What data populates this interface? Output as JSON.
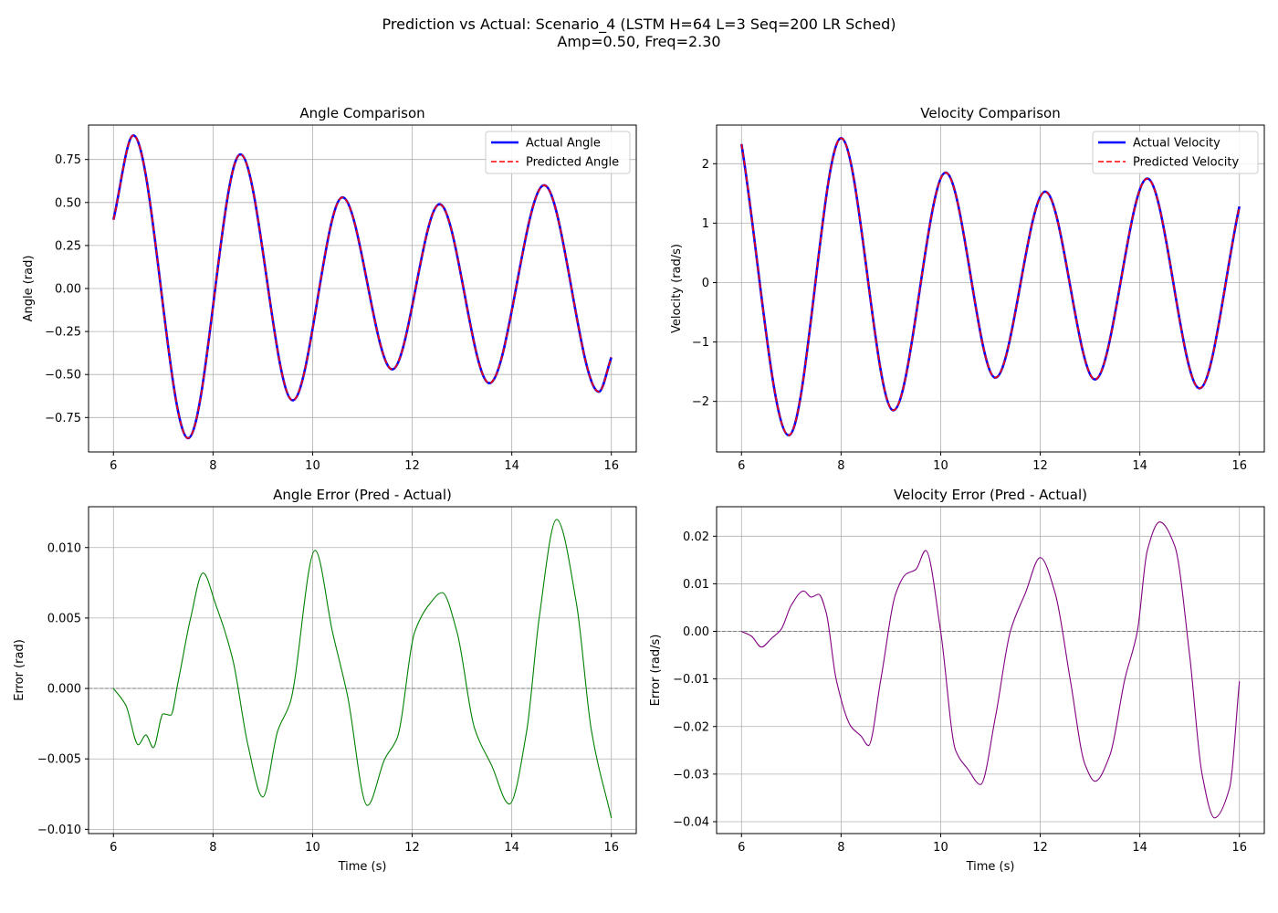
{
  "figure": {
    "title_line1": "Prediction vs Actual: Scenario_4 (LSTM H=64 L=3 Seq=200 LR Sched)",
    "title_line2": "Amp=0.50, Freq=2.30"
  },
  "colors": {
    "actual": "#0000ff",
    "predicted": "#ff0000",
    "angle_error": "#008000",
    "velocity_error": "#800080",
    "zero_line": "#808080",
    "grid": "#b0b0b0"
  },
  "chart_data": [
    {
      "id": "angle",
      "type": "line",
      "title": "Angle Comparison",
      "xlabel": "",
      "ylabel": "Angle (rad)",
      "xlim": [
        5.5,
        16.5
      ],
      "ylim": [
        -0.95,
        0.95
      ],
      "xticks": [
        6,
        8,
        10,
        12,
        14,
        16
      ],
      "yticks": [
        -0.75,
        -0.5,
        -0.25,
        0.0,
        0.25,
        0.5,
        0.75
      ],
      "ytick_labels": [
        "−0.75",
        "−0.50",
        "−0.25",
        "0.00",
        "0.25",
        "0.50",
        "0.75"
      ],
      "grid": true,
      "legend": "top-right",
      "x": [
        6.0,
        6.4,
        7.5,
        8.55,
        9.6,
        10.6,
        11.6,
        12.55,
        13.55,
        14.65,
        15.75,
        16.0
      ],
      "series": [
        {
          "name": "Actual Angle",
          "style": "solid",
          "values": [
            0.4,
            0.89,
            -0.87,
            0.78,
            -0.65,
            0.53,
            -0.47,
            0.49,
            -0.55,
            0.6,
            -0.6,
            -0.4
          ]
        },
        {
          "name": "Predicted Angle",
          "style": "dashed",
          "values": [
            0.4,
            0.89,
            -0.87,
            0.78,
            -0.65,
            0.53,
            -0.47,
            0.49,
            -0.55,
            0.6,
            -0.6,
            -0.4
          ]
        }
      ]
    },
    {
      "id": "velocity",
      "type": "line",
      "title": "Velocity Comparison",
      "xlabel": "",
      "ylabel": "Velocity (rad/s)",
      "xlim": [
        5.5,
        16.5
      ],
      "ylim": [
        -2.85,
        2.65
      ],
      "xticks": [
        6,
        8,
        10,
        12,
        14,
        16
      ],
      "yticks": [
        -2,
        -1,
        0,
        1,
        2
      ],
      "ytick_labels": [
        "−2",
        "−1",
        "0",
        "1",
        "2"
      ],
      "grid": true,
      "legend": "top-right",
      "x": [
        6.0,
        6.95,
        8.0,
        9.05,
        10.1,
        11.1,
        12.1,
        13.1,
        14.15,
        15.2,
        16.0
      ],
      "series": [
        {
          "name": "Actual Velocity",
          "style": "solid",
          "values": [
            2.33,
            -2.57,
            2.43,
            -2.15,
            1.85,
            -1.6,
            1.53,
            -1.63,
            1.75,
            -1.78,
            1.28
          ]
        },
        {
          "name": "Predicted Velocity",
          "style": "dashed",
          "values": [
            2.33,
            -2.57,
            2.43,
            -2.15,
            1.85,
            -1.6,
            1.53,
            -1.63,
            1.75,
            -1.78,
            1.28
          ]
        }
      ]
    },
    {
      "id": "angle_error",
      "type": "line",
      "title": "Angle Error (Pred - Actual)",
      "xlabel": "Time (s)",
      "ylabel": "Error (rad)",
      "xlim": [
        5.5,
        16.5
      ],
      "ylim": [
        -0.0103,
        0.0129
      ],
      "xticks": [
        6,
        8,
        10,
        12,
        14,
        16
      ],
      "yticks": [
        -0.01,
        -0.005,
        0.0,
        0.005,
        0.01
      ],
      "ytick_labels": [
        "−0.010",
        "−0.005",
        "0.000",
        "0.005",
        "0.010"
      ],
      "grid": true,
      "zero_line": true,
      "x": [
        6.0,
        6.25,
        6.5,
        6.65,
        6.8,
        7.0,
        7.15,
        7.3,
        7.55,
        7.8,
        8.05,
        8.4,
        8.7,
        9.0,
        9.3,
        9.55,
        10.05,
        10.4,
        10.7,
        11.1,
        11.45,
        11.7,
        12.05,
        12.35,
        12.6,
        12.9,
        13.25,
        13.6,
        13.95,
        14.3,
        14.55,
        14.9,
        15.3,
        15.6,
        16.0
      ],
      "series": [
        {
          "name": "",
          "style": "solid",
          "values": [
            0.0,
            -0.0012,
            -0.004,
            -0.0033,
            -0.0042,
            -0.0018,
            -0.0019,
            0.0005,
            0.005,
            0.0082,
            0.006,
            0.002,
            -0.004,
            -0.0077,
            -0.003,
            -0.001,
            0.0098,
            0.004,
            -0.0005,
            -0.0083,
            -0.005,
            -0.0035,
            0.004,
            0.006,
            0.0068,
            0.004,
            -0.0028,
            -0.0055,
            -0.0082,
            -0.003,
            0.005,
            0.012,
            0.006,
            -0.003,
            -0.0092
          ]
        }
      ]
    },
    {
      "id": "velocity_error",
      "type": "line",
      "title": "Velocity Error (Pred - Actual)",
      "xlabel": "Time (s)",
      "ylabel": "Error (rad/s)",
      "xlim": [
        5.5,
        16.5
      ],
      "ylim": [
        -0.0425,
        0.0262
      ],
      "xticks": [
        6,
        8,
        10,
        12,
        14,
        16
      ],
      "yticks": [
        -0.04,
        -0.03,
        -0.02,
        -0.01,
        0.0,
        0.01,
        0.02
      ],
      "ytick_labels": [
        "−0.04",
        "−0.03",
        "−0.02",
        "−0.01",
        "0.00",
        "0.01",
        "0.02"
      ],
      "grid": true,
      "zero_line": true,
      "x": [
        6.0,
        6.2,
        6.4,
        6.6,
        6.8,
        7.0,
        7.25,
        7.4,
        7.55,
        7.7,
        7.9,
        8.2,
        8.4,
        8.55,
        8.8,
        9.1,
        9.3,
        9.5,
        9.7,
        10.0,
        10.3,
        10.55,
        10.8,
        11.1,
        11.4,
        11.7,
        12.0,
        12.3,
        12.6,
        12.9,
        13.1,
        13.4,
        13.7,
        13.95,
        14.15,
        14.4,
        14.7,
        15.0,
        15.25,
        15.5,
        15.8,
        16.0
      ],
      "series": [
        {
          "name": "",
          "style": "solid",
          "values": [
            0.0,
            -0.001,
            -0.0033,
            -0.0015,
            0.0005,
            0.0055,
            0.0085,
            0.0072,
            0.0078,
            0.004,
            -0.01,
            -0.02,
            -0.022,
            -0.024,
            -0.01,
            0.008,
            0.012,
            0.013,
            0.017,
            0.0,
            -0.025,
            -0.029,
            -0.0322,
            -0.018,
            0.0,
            0.008,
            0.0155,
            0.008,
            -0.01,
            -0.028,
            -0.0315,
            -0.026,
            -0.01,
            0.0,
            0.017,
            0.023,
            0.018,
            -0.005,
            -0.03,
            -0.0392,
            -0.033,
            -0.0105
          ]
        }
      ]
    }
  ]
}
